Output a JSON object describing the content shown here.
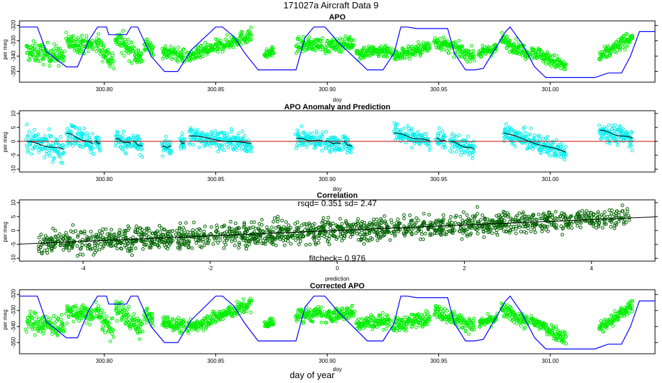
{
  "figure": {
    "title": "171027a   Aircraft Data 9",
    "bottom_label": "day of year"
  },
  "colors": {
    "apo_points": "#00ee00",
    "anomaly_points": "#00eeee",
    "correlation_points": "#006400",
    "aircraft_profile": "#0000ff",
    "zero_line": "#cc0000",
    "fit_line": "#000000"
  },
  "chart_data": [
    {
      "id": "apo",
      "type": "scatter",
      "title": "APO",
      "xlabel": "doy",
      "ylabel": "per meg",
      "xlim": [
        300.762,
        301.047
      ],
      "ylim": [
        -357,
        -317
      ],
      "xticks": [
        300.8,
        300.85,
        300.9,
        300.95,
        301.0
      ],
      "xtick_labels": [
        "300.80",
        "300.85",
        "300.90",
        "300.95",
        "301.00"
      ],
      "yticks": [
        -320,
        -330,
        -340,
        -350
      ],
      "ytick_labels": [
        "-320",
        "-330",
        "-340",
        "-350"
      ],
      "segments": [
        {
          "x": [
            300.765,
            300.782
          ],
          "y": [
            -337,
            -340
          ],
          "spread": 6
        },
        {
          "x": [
            300.783,
            300.795
          ],
          "y": [
            -331,
            -333
          ],
          "spread": 5
        },
        {
          "x": [
            300.796,
            300.804
          ],
          "y": [
            -330,
            -344
          ],
          "spread": 6
        },
        {
          "x": [
            300.805,
            300.817
          ],
          "y": [
            -328,
            -342
          ],
          "spread": 6
        },
        {
          "x": [
            300.818,
            300.822
          ],
          "y": [
            -332,
            -336
          ],
          "spread": 4
        },
        {
          "x": [
            300.826,
            300.836
          ],
          "y": [
            -337,
            -340
          ],
          "spread": 4
        },
        {
          "x": [
            300.837,
            300.866
          ],
          "y": [
            -341,
            -326
          ],
          "spread": 4
        },
        {
          "x": [
            300.872,
            300.876
          ],
          "y": [
            -339,
            -337
          ],
          "spread": 3
        },
        {
          "x": [
            300.886,
            300.898
          ],
          "y": [
            -333,
            -332
          ],
          "spread": 4
        },
        {
          "x": [
            300.899,
            300.912
          ],
          "y": [
            -334,
            -331
          ],
          "spread": 4
        },
        {
          "x": [
            300.913,
            300.928
          ],
          "y": [
            -338,
            -336
          ],
          "spread": 4
        },
        {
          "x": [
            300.929,
            300.946
          ],
          "y": [
            -340,
            -334
          ],
          "spread": 4
        },
        {
          "x": [
            300.948,
            300.966
          ],
          "y": [
            -330,
            -340
          ],
          "spread": 4
        },
        {
          "x": [
            300.968,
            300.976
          ],
          "y": [
            -338,
            -335
          ],
          "spread": 3
        },
        {
          "x": [
            300.978,
            300.99
          ],
          "y": [
            -329,
            -338
          ],
          "spread": 4
        },
        {
          "x": [
            300.991,
            301.007
          ],
          "y": [
            -336,
            -347
          ],
          "spread": 4
        },
        {
          "x": [
            301.022,
            301.037
          ],
          "y": [
            -341,
            -327
          ],
          "spread": 4
        }
      ],
      "profile": {
        "name": "aircraft profile",
        "x": [
          300.762,
          300.77,
          300.774,
          300.783,
          300.788,
          300.793,
          300.797,
          300.801,
          300.802,
          300.81,
          300.812,
          300.815,
          300.821,
          300.827,
          300.833,
          300.839,
          300.85,
          300.853,
          300.858,
          300.863,
          300.869,
          300.874,
          300.886,
          300.89,
          300.894,
          300.899,
          300.905,
          300.918,
          300.925,
          300.93,
          300.933,
          300.936,
          300.94,
          300.95,
          300.954,
          300.957,
          300.962,
          300.966,
          300.97,
          300.98,
          300.982,
          300.987,
          300.993,
          300.998,
          301.003,
          301.008,
          301.02,
          301.026,
          301.032,
          301.036,
          301.04,
          301.047
        ],
        "y": [
          -321,
          -321,
          -337,
          -347,
          -347,
          -330,
          -321,
          -321,
          -326,
          -326,
          -321,
          -321,
          -340,
          -350,
          -350,
          -336,
          -321,
          -321,
          -327,
          -338,
          -349,
          -349,
          -349,
          -328,
          -321,
          -321,
          -331,
          -349,
          -349,
          -338,
          -321,
          -321,
          -322,
          -322,
          -322,
          -338,
          -349,
          -349,
          -348,
          -324,
          -321,
          -331,
          -347,
          -354,
          -354,
          -354,
          -354,
          -351,
          -351,
          -340,
          -324,
          -324
        ]
      }
    },
    {
      "id": "anomaly",
      "type": "scatter",
      "title": "APO Anomaly and Prediction",
      "xlabel": "doy",
      "ylabel": "per meg",
      "xlim": [
        300.762,
        301.047
      ],
      "ylim": [
        -11,
        11
      ],
      "xticks": [
        300.8,
        300.85,
        300.9,
        300.95,
        301.0
      ],
      "xtick_labels": [
        "300.80",
        "300.85",
        "300.90",
        "300.95",
        "301.00"
      ],
      "yticks": [
        10,
        5,
        0,
        -5,
        -10
      ],
      "ytick_labels": [
        "10",
        "5",
        "0",
        "-5",
        "-10"
      ],
      "segments": [
        {
          "x": [
            300.765,
            300.782
          ],
          "y": [
            0,
            -3
          ],
          "spread": 4
        },
        {
          "x": [
            300.783,
            300.795
          ],
          "y": [
            3,
            -1
          ],
          "spread": 4
        },
        {
          "x": [
            300.796,
            300.798
          ],
          "y": [
            0,
            -1
          ],
          "spread": 3
        },
        {
          "x": [
            300.805,
            300.812
          ],
          "y": [
            1,
            -1
          ],
          "spread": 3
        },
        {
          "x": [
            300.813,
            300.817
          ],
          "y": [
            0,
            -2
          ],
          "spread": 3
        },
        {
          "x": [
            300.826,
            300.83
          ],
          "y": [
            -2,
            -2
          ],
          "spread": 3
        },
        {
          "x": [
            300.834,
            300.836
          ],
          "y": [
            0,
            -1
          ],
          "spread": 3
        },
        {
          "x": [
            300.838,
            300.866
          ],
          "y": [
            2,
            -1
          ],
          "spread": 3
        },
        {
          "x": [
            300.886,
            300.898
          ],
          "y": [
            1,
            0
          ],
          "spread": 3
        },
        {
          "x": [
            300.899,
            300.906
          ],
          "y": [
            0,
            -1
          ],
          "spread": 3
        },
        {
          "x": [
            300.907,
            300.911
          ],
          "y": [
            0,
            -2
          ],
          "spread": 3
        },
        {
          "x": [
            300.93,
            300.946
          ],
          "y": [
            3,
            0
          ],
          "spread": 3
        },
        {
          "x": [
            300.949,
            300.953
          ],
          "y": [
            1,
            0
          ],
          "spread": 3
        },
        {
          "x": [
            300.955,
            300.966
          ],
          "y": [
            0,
            -3
          ],
          "spread": 3
        },
        {
          "x": [
            300.979,
            301.007
          ],
          "y": [
            3,
            -4
          ],
          "spread": 3
        },
        {
          "x": [
            301.022,
            301.037
          ],
          "y": [
            4,
            1
          ],
          "spread": 3
        }
      ],
      "zero_line": 0
    },
    {
      "id": "correlation",
      "type": "scatter",
      "title": "Correlation",
      "subtitle": "rsqd= 0.351 sd= 2.47",
      "footnote": "fitcheck= 0.976",
      "xlabel": "prediction",
      "ylabel": "per meg",
      "xlim": [
        -5.0,
        5.0
      ],
      "ylim": [
        -11,
        11
      ],
      "xticks": [
        -4,
        -2,
        0,
        2,
        4
      ],
      "xtick_labels": [
        "-4",
        "-2",
        "0",
        "2",
        "4"
      ],
      "yticks": [
        10,
        5,
        0,
        -5,
        -10
      ],
      "ytick_labels": [
        "10",
        "5",
        "0",
        "-5",
        "-10"
      ],
      "point_range": [
        -4.7,
        4.6
      ],
      "rsqd": 0.351,
      "sd": 2.47,
      "fitcheck": 0.976,
      "fit_line": {
        "slope": 0.976,
        "intercept": 0
      }
    },
    {
      "id": "corrected",
      "type": "scatter",
      "title": "Corrected APO",
      "xlabel": "doy",
      "ylabel": "per meg",
      "xlim": [
        300.762,
        301.047
      ],
      "ylim": [
        -357,
        -317
      ],
      "xticks": [
        300.8,
        300.85,
        300.9,
        300.95,
        301.0
      ],
      "xtick_labels": [
        "300.80",
        "300.85",
        "300.90",
        "300.95",
        "301.00"
      ],
      "yticks": [
        -320,
        -330,
        -340,
        -350
      ],
      "ytick_labels": [
        "-320",
        "-330",
        "-340",
        "-350"
      ],
      "uses_segments_of": "apo",
      "uses_profile_of": "apo"
    }
  ]
}
